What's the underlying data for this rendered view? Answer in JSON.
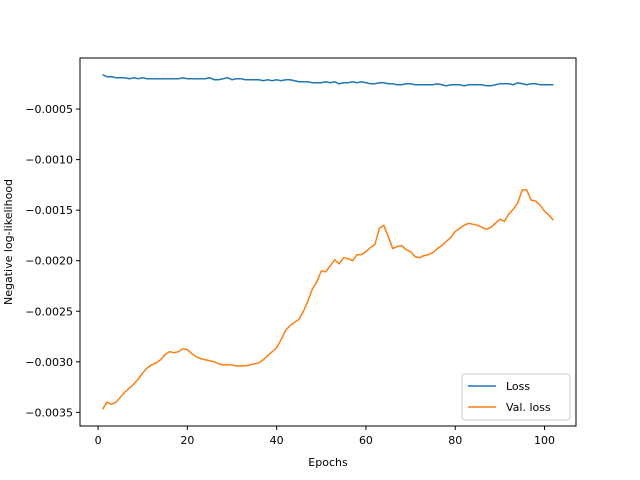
{
  "chart_data": {
    "type": "line",
    "x_label": "Epochs",
    "y_label": "Negative log-likelihood",
    "x": [
      1,
      2,
      3,
      4,
      5,
      6,
      7,
      8,
      9,
      10,
      11,
      12,
      13,
      14,
      15,
      16,
      17,
      18,
      19,
      20,
      21,
      22,
      23,
      24,
      25,
      26,
      27,
      28,
      29,
      30,
      31,
      32,
      33,
      34,
      35,
      36,
      37,
      38,
      39,
      40,
      41,
      42,
      43,
      44,
      45,
      46,
      47,
      48,
      49,
      50,
      51,
      52,
      53,
      54,
      55,
      56,
      57,
      58,
      59,
      60,
      61,
      62,
      63,
      64,
      65,
      66,
      67,
      68,
      69,
      70,
      71,
      72,
      73,
      74,
      75,
      76,
      77,
      78,
      79,
      80,
      81,
      82,
      83,
      84,
      85,
      86,
      87,
      88,
      89,
      90,
      91,
      92,
      93,
      94,
      95,
      96,
      97,
      98,
      99,
      100,
      101,
      102
    ],
    "series": [
      {
        "name": "Loss",
        "color": "#1f77b4",
        "values": [
          -0.00016,
          -0.00018,
          -0.00018,
          -0.00019,
          -0.00019,
          -0.00019,
          -0.0002,
          -0.00019,
          -0.0002,
          -0.00019,
          -0.0002,
          -0.0002,
          -0.0002,
          -0.0002,
          -0.0002,
          -0.0002,
          -0.0002,
          -0.0002,
          -0.00019,
          -0.0002,
          -0.0002,
          -0.0002,
          -0.0002,
          -0.0002,
          -0.00019,
          -0.00021,
          -0.00021,
          -0.0002,
          -0.00019,
          -0.00021,
          -0.0002,
          -0.0002,
          -0.00021,
          -0.00021,
          -0.00021,
          -0.00021,
          -0.00022,
          -0.00021,
          -0.00022,
          -0.00021,
          -0.00022,
          -0.00021,
          -0.00021,
          -0.00022,
          -0.00023,
          -0.00023,
          -0.00023,
          -0.00024,
          -0.00024,
          -0.00024,
          -0.00023,
          -0.00024,
          -0.00023,
          -0.00025,
          -0.00024,
          -0.00024,
          -0.00023,
          -0.00024,
          -0.00023,
          -0.00024,
          -0.00025,
          -0.00025,
          -0.00024,
          -0.00024,
          -0.00025,
          -0.00025,
          -0.00026,
          -0.00026,
          -0.00025,
          -0.00025,
          -0.00026,
          -0.00026,
          -0.00026,
          -0.00026,
          -0.00026,
          -0.00025,
          -0.00026,
          -0.00027,
          -0.00026,
          -0.00026,
          -0.00026,
          -0.00027,
          -0.00026,
          -0.00026,
          -0.00026,
          -0.00026,
          -0.00027,
          -0.00027,
          -0.00026,
          -0.00025,
          -0.00025,
          -0.00025,
          -0.00026,
          -0.00024,
          -0.00025,
          -0.00026,
          -0.00025,
          -0.00025,
          -0.00026,
          -0.00026,
          -0.00026,
          -0.00026
        ]
      },
      {
        "name": "Val. loss",
        "color": "#ff7f0e",
        "values": [
          -0.00347,
          -0.0034,
          -0.00342,
          -0.0034,
          -0.00335,
          -0.0033,
          -0.00326,
          -0.00322,
          -0.00317,
          -0.00311,
          -0.00306,
          -0.00303,
          -0.00301,
          -0.00298,
          -0.00293,
          -0.0029,
          -0.00291,
          -0.0029,
          -0.00287,
          -0.00288,
          -0.00292,
          -0.00295,
          -0.00297,
          -0.00298,
          -0.00299,
          -0.003,
          -0.00302,
          -0.00303,
          -0.00303,
          -0.00303,
          -0.00304,
          -0.00304,
          -0.00304,
          -0.00303,
          -0.00302,
          -0.00301,
          -0.00298,
          -0.00294,
          -0.0029,
          -0.00286,
          -0.00278,
          -0.00269,
          -0.00264,
          -0.00261,
          -0.00258,
          -0.0025,
          -0.0024,
          -0.00228,
          -0.00221,
          -0.0021,
          -0.00211,
          -0.00205,
          -0.00199,
          -0.00203,
          -0.00197,
          -0.00198,
          -0.002,
          -0.00194,
          -0.00194,
          -0.00191,
          -0.00187,
          -0.00184,
          -0.00168,
          -0.00165,
          -0.00176,
          -0.00188,
          -0.00186,
          -0.00185,
          -0.00189,
          -0.00191,
          -0.00196,
          -0.00197,
          -0.00195,
          -0.00194,
          -0.00192,
          -0.00188,
          -0.00185,
          -0.00181,
          -0.00177,
          -0.00171,
          -0.00168,
          -0.00165,
          -0.00163,
          -0.00164,
          -0.00165,
          -0.00167,
          -0.00169,
          -0.00167,
          -0.00163,
          -0.00159,
          -0.00161,
          -0.00154,
          -0.00149,
          -0.00143,
          -0.0013,
          -0.0013,
          -0.0014,
          -0.00141,
          -0.00145,
          -0.00151,
          -0.00155,
          -0.0016
        ]
      }
    ],
    "xlim": [
      -4.05,
      107.05
    ],
    "xticks": [
      0,
      20,
      40,
      60,
      80,
      100
    ],
    "ylim": [
      -0.003635,
      5e-06
    ],
    "yticks": [
      {
        "value": -0.0035,
        "label": "−0.0035"
      },
      {
        "value": -0.003,
        "label": "−0.0030"
      },
      {
        "value": -0.0025,
        "label": "−0.0025"
      },
      {
        "value": -0.002,
        "label": "−0.0020"
      },
      {
        "value": -0.0015,
        "label": "−0.0015"
      },
      {
        "value": -0.001,
        "label": "−0.0010"
      },
      {
        "value": -0.0005,
        "label": "−0.0005"
      }
    ],
    "grid": false,
    "legend": "lower right"
  }
}
